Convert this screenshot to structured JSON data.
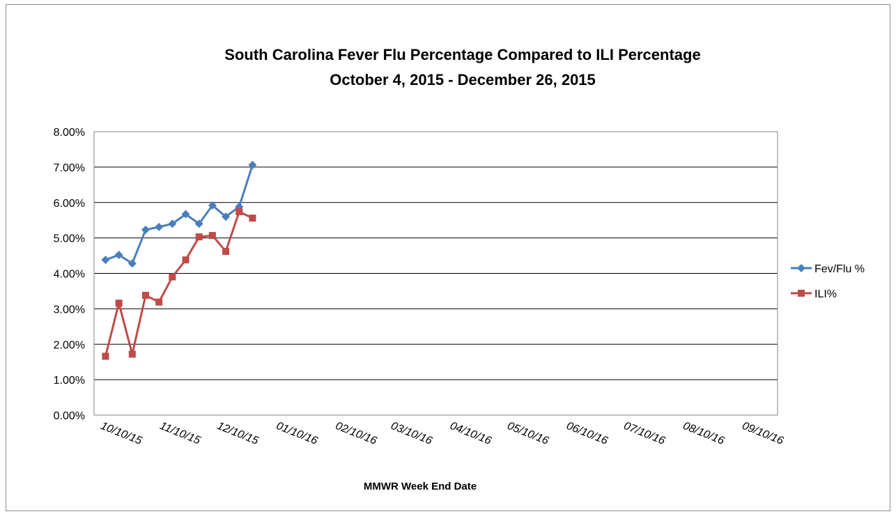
{
  "chart_data": {
    "type": "line",
    "title": "South Carolina Fever Flu Percentage Compared to ILI Percentage",
    "subtitle": "October 4, 2015 - December 26, 2015",
    "xlabel": "MMWR Week End Date",
    "ylabel": "",
    "x_axis_type": "date",
    "xlim": [
      "2015-10-04",
      "2016-09-26"
    ],
    "ylim": [
      0,
      8
    ],
    "y_ticks": [
      "0.00%",
      "1.00%",
      "2.00%",
      "3.00%",
      "4.00%",
      "5.00%",
      "6.00%",
      "7.00%",
      "8.00%"
    ],
    "x_ticks": [
      {
        "date": "2015-10-10",
        "label": "10/10/15"
      },
      {
        "date": "2015-11-10",
        "label": "11/10/15"
      },
      {
        "date": "2015-12-10",
        "label": "12/10/15"
      },
      {
        "date": "2016-01-10",
        "label": "01/10/16"
      },
      {
        "date": "2016-02-10",
        "label": "02/10/16"
      },
      {
        "date": "2016-03-10",
        "label": "03/10/16"
      },
      {
        "date": "2016-04-10",
        "label": "04/10/16"
      },
      {
        "date": "2016-05-10",
        "label": "05/10/16"
      },
      {
        "date": "2016-06-10",
        "label": "06/10/16"
      },
      {
        "date": "2016-07-10",
        "label": "07/10/16"
      },
      {
        "date": "2016-08-10",
        "label": "08/10/16"
      },
      {
        "date": "2016-09-10",
        "label": "09/10/16"
      }
    ],
    "x": [
      "2015-10-10",
      "2015-10-17",
      "2015-10-24",
      "2015-10-31",
      "2015-11-07",
      "2015-11-14",
      "2015-11-21",
      "2015-11-28",
      "2015-12-05",
      "2015-12-12",
      "2015-12-19",
      "2015-12-26"
    ],
    "series": [
      {
        "name": "Fev/Flu %",
        "color": "#4a7ebb",
        "marker": "diamond",
        "values": [
          4.38,
          4.52,
          4.28,
          5.23,
          5.31,
          5.4,
          5.67,
          5.4,
          5.92,
          5.6,
          5.88,
          7.06
        ]
      },
      {
        "name": "ILI%",
        "color": "#be4b48",
        "marker": "square",
        "values": [
          1.66,
          3.16,
          1.72,
          3.38,
          3.19,
          3.9,
          4.38,
          5.03,
          5.07,
          4.62,
          5.74,
          5.56
        ]
      }
    ],
    "grid": {
      "horizontal": true,
      "vertical": false,
      "color": "#000000"
    },
    "legend_position": "right"
  }
}
